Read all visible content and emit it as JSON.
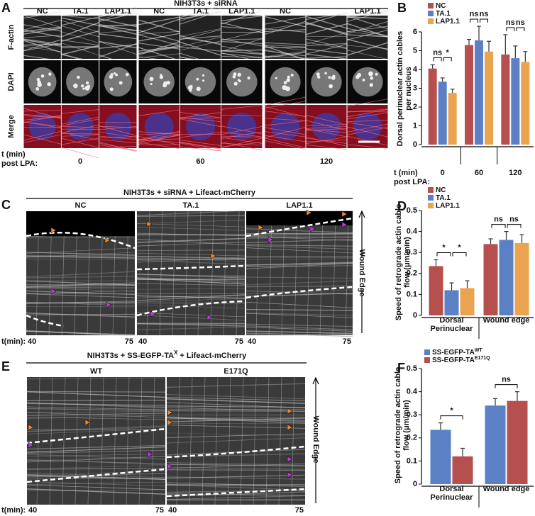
{
  "panels": [
    {
      "letter": "A",
      "title": "NIH3T3s + siRNA",
      "rows": [
        "F-actin",
        "DAPI",
        "Merge"
      ],
      "time_label": [
        "t (min)",
        "post LPA:"
      ],
      "groups": [
        {
          "columns": [
            "NC",
            "TA.1",
            "LAP1.1"
          ],
          "time": "0"
        },
        {
          "columns": [
            "NC",
            "TA.1",
            "LAP1.1"
          ],
          "time": "60"
        },
        {
          "columns": [
            "NC",
            "LAP1.1"
          ],
          "time": "120"
        }
      ]
    },
    {
      "letter": "C",
      "title": "NIH3T3s + siRNA + Lifeact-mCherry",
      "columns": [
        "NC",
        "TA.1",
        "LAP1.1"
      ],
      "time_label": "t(min):",
      "times": [
        "40",
        "75"
      ],
      "edge_label": "Wound Edge"
    },
    {
      "letter": "E",
      "title": [
        "NIH3T3s + SS-EGFP-TA",
        "X",
        "+ Lifeact-mCherry"
      ],
      "columns": [
        "WT",
        "E171Q"
      ],
      "time_label": "t(min):",
      "times": [
        "40",
        "75"
      ],
      "edge_label": "Wound Edge"
    }
  ],
  "chart_data": [
    {
      "type": "bar",
      "panel": "B",
      "ylabel": "Dorsal perinuclear actin cables per nucleus",
      "xlabel": [
        "t (min)",
        "post LPA:"
      ],
      "categories": [
        "0",
        "60",
        "120"
      ],
      "series": [
        {
          "name": "NC",
          "color": "#b5504f",
          "values": [
            4.05,
            5.3,
            4.8
          ],
          "errors": [
            0.2,
            0.3,
            1.05
          ]
        },
        {
          "name": "TA.1",
          "color": "#5b80c6",
          "values": [
            3.35,
            5.55,
            4.6
          ],
          "errors": [
            0.2,
            0.75,
            0.65
          ]
        },
        {
          "name": "LAP1.1",
          "color": "#eaa34e",
          "values": [
            2.75,
            4.95,
            4.4
          ],
          "errors": [
            0.2,
            0.55,
            0.55
          ]
        }
      ],
      "ylim": [
        0,
        6
      ],
      "yticks": [
        0,
        1,
        2,
        3,
        4,
        5,
        6
      ],
      "significance": [
        [
          "ns",
          "*"
        ],
        [
          "ns",
          "ns"
        ],
        [
          "ns",
          "ns"
        ]
      ]
    },
    {
      "type": "bar",
      "panel": "D",
      "ylabel": "Speed of retrograde actin cable flow (μm/min)",
      "categories": [
        "Dorsal Perinuclear",
        "Wound edge"
      ],
      "series": [
        {
          "name": "NC",
          "color": "#b5504f",
          "values": [
            0.235,
            0.34
          ],
          "errors": [
            0.03,
            0.025
          ]
        },
        {
          "name": "TA.1",
          "color": "#5b80c6",
          "values": [
            0.12,
            0.36
          ],
          "errors": [
            0.035,
            0.04
          ]
        },
        {
          "name": "LAP1.1",
          "color": "#eaa34e",
          "values": [
            0.13,
            0.345
          ],
          "errors": [
            0.035,
            0.04
          ]
        }
      ],
      "ylim": [
        0,
        0.5
      ],
      "yticks": [
        0,
        0.1,
        0.2,
        0.3,
        0.4,
        0.5
      ],
      "significance": [
        [
          "*",
          "*"
        ],
        [
          "ns",
          "ns"
        ]
      ]
    },
    {
      "type": "bar",
      "panel": "F",
      "ylabel": "Speed of retrograde actin cable flow (μm/min)",
      "categories": [
        "Dorsal Perinuclear",
        "Wound edge"
      ],
      "series": [
        {
          "name": "SS-EGFP-TA",
          "superscript": "WT",
          "color": "#5b80c6",
          "values": [
            0.235,
            0.34
          ],
          "errors": [
            0.03,
            0.03
          ]
        },
        {
          "name": "SS-EGFP-TA",
          "superscript": "E171Q",
          "color": "#b5504f",
          "values": [
            0.12,
            0.36
          ],
          "errors": [
            0.035,
            0.04
          ]
        }
      ],
      "ylim": [
        0,
        0.5
      ],
      "yticks": [
        0,
        0.1,
        0.2,
        0.3,
        0.4,
        0.5
      ],
      "significance": [
        [
          "*"
        ],
        [
          "ns"
        ]
      ]
    }
  ]
}
